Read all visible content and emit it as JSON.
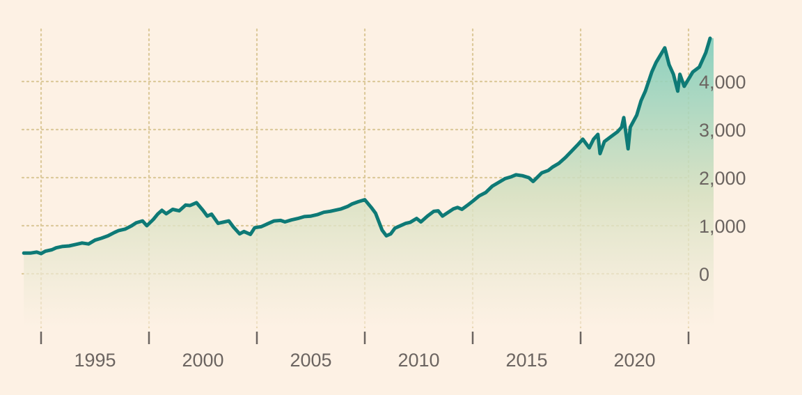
{
  "chart_data": {
    "type": "area",
    "title": "",
    "xlabel": "",
    "ylabel": "",
    "x_range": [
      1993.0,
      2023.0
    ],
    "ylim": [
      -1100,
      5000
    ],
    "x_ticks": [
      1993,
      1998,
      2003,
      2008,
      2013,
      2018,
      2023
    ],
    "x_tick_labels": [
      {
        "x": 1995.5,
        "label": "1995"
      },
      {
        "x": 2000.5,
        "label": "2000"
      },
      {
        "x": 2005.5,
        "label": "2005"
      },
      {
        "x": 2010.5,
        "label": "2010"
      },
      {
        "x": 2015.5,
        "label": "2015"
      },
      {
        "x": 2020.5,
        "label": "2020"
      }
    ],
    "y_ticks": [
      0,
      1000,
      2000,
      3000,
      4000
    ],
    "y_tick_labels": [
      "0",
      "1,000",
      "2,000",
      "3,000",
      "4,000"
    ],
    "grid": true,
    "colors": {
      "background": "#fdf1e4",
      "line": "#0e7a76",
      "fill_top": "#7fcdbb",
      "fill_bottom": "#fdf1e4",
      "grid": "#dcc99a",
      "text": "#6b6460"
    },
    "series": [
      {
        "x": [
          1992.2,
          1992.5,
          1992.8,
          1993.0,
          1993.2,
          1993.5,
          1993.7,
          1994.0,
          1994.3,
          1994.6,
          1994.9,
          1995.2,
          1995.5,
          1995.8,
          1996.1,
          1996.4,
          1996.6,
          1996.9,
          1997.2,
          1997.4,
          1997.7,
          1997.9,
          1998.2,
          1998.4,
          1998.6,
          1998.8,
          1999.1,
          1999.4,
          1999.7,
          1999.9,
          2000.2,
          2000.5,
          2000.7,
          2000.9,
          2001.2,
          2001.5,
          2001.7,
          2001.9,
          2002.2,
          2002.4,
          2002.7,
          2002.9,
          2003.2,
          2003.5,
          2003.8,
          2004.1,
          2004.3,
          2004.6,
          2004.9,
          2005.2,
          2005.5,
          2005.8,
          2006.1,
          2006.4,
          2006.6,
          2006.9,
          2007.2,
          2007.4,
          2007.7,
          2008.0,
          2008.3,
          2008.5,
          2008.8,
          2009.0,
          2009.2,
          2009.4,
          2009.7,
          2009.9,
          2010.1,
          2010.4,
          2010.6,
          2010.9,
          2011.2,
          2011.4,
          2011.6,
          2011.8,
          2012.1,
          2012.3,
          2012.5,
          2012.8,
          2013.0,
          2013.3,
          2013.6,
          2013.9,
          2014.2,
          2014.5,
          2014.8,
          2015.0,
          2015.3,
          2015.6,
          2015.8,
          2016.0,
          2016.2,
          2016.5,
          2016.7,
          2017.0,
          2017.3,
          2017.6,
          2017.9,
          2018.1,
          2018.4,
          2018.6,
          2018.8,
          2018.9,
          2019.1,
          2019.4,
          2019.7,
          2019.9,
          2020.0,
          2020.2,
          2020.3,
          2020.6,
          2020.8,
          2021.0,
          2021.3,
          2021.5,
          2021.7,
          2021.9,
          2022.1,
          2022.3,
          2022.5,
          2022.6,
          2022.8,
          2023.0,
          2023.2,
          2023.5,
          2023.8,
          2024.0
        ],
        "values": [
          430,
          430,
          450,
          420,
          470,
          500,
          540,
          570,
          580,
          610,
          640,
          620,
          700,
          740,
          790,
          860,
          900,
          930,
          1000,
          1060,
          1100,
          1000,
          1130,
          1240,
          1320,
          1250,
          1340,
          1310,
          1430,
          1420,
          1480,
          1320,
          1200,
          1240,
          1050,
          1080,
          1100,
          980,
          830,
          880,
          820,
          960,
          980,
          1040,
          1100,
          1110,
          1080,
          1120,
          1150,
          1190,
          1200,
          1230,
          1280,
          1300,
          1320,
          1350,
          1400,
          1450,
          1500,
          1540,
          1380,
          1260,
          910,
          790,
          830,
          950,
          1010,
          1050,
          1070,
          1150,
          1080,
          1200,
          1300,
          1310,
          1200,
          1260,
          1350,
          1380,
          1340,
          1440,
          1510,
          1620,
          1690,
          1820,
          1900,
          1980,
          2020,
          2060,
          2040,
          2000,
          1920,
          2010,
          2100,
          2150,
          2220,
          2300,
          2420,
          2560,
          2700,
          2800,
          2620,
          2800,
          2900,
          2500,
          2750,
          2850,
          2950,
          3050,
          3250,
          2600,
          3050,
          3300,
          3600,
          3800,
          4200,
          4400,
          4550,
          4700,
          4350,
          4150,
          3800,
          4150,
          3900,
          4050,
          4200,
          4300,
          4600,
          4900
        ]
      }
    ]
  }
}
